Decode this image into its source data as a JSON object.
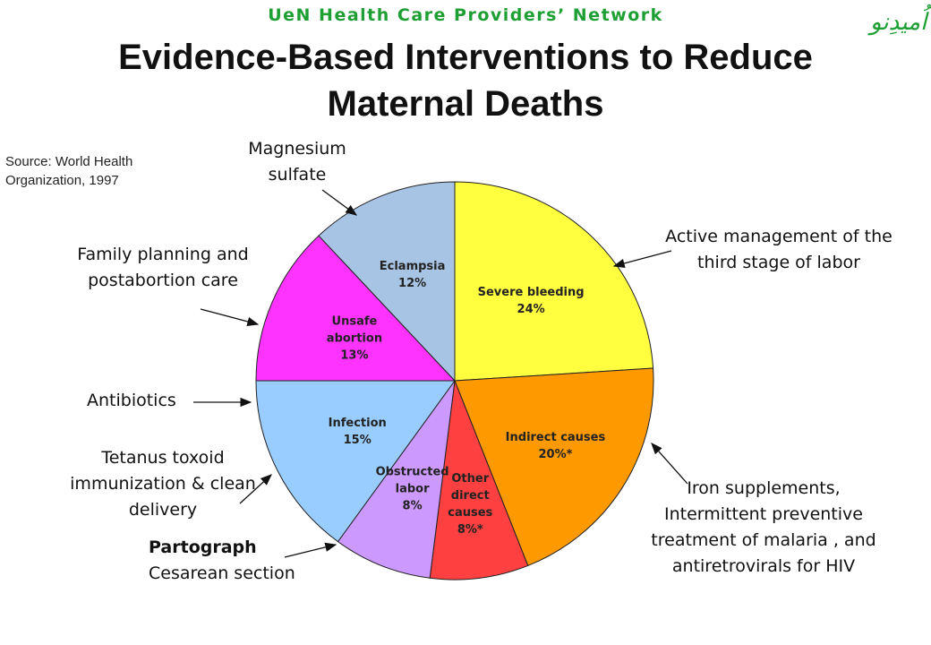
{
  "header": {
    "network": "UeN Health Care Providers’ Network",
    "title": "Evidence-Based Interventions to Reduce Maternal Deaths",
    "logo_text": "اُمیدِنو"
  },
  "source": "Source: World Health Organization, 1997",
  "chart_data": {
    "type": "pie",
    "title": "Evidence-Based Interventions to Reduce Maternal Deaths",
    "categories": [
      "Severe bleeding",
      "Indirect causes",
      "Other direct causes",
      "Obstructed labor",
      "Infection",
      "Unsafe abortion",
      "Eclampsia"
    ],
    "values": [
      24,
      20,
      8,
      8,
      15,
      13,
      12
    ],
    "value_labels": [
      "24%",
      "20%*",
      "8%*",
      "8%",
      "15%",
      "13%",
      "12%"
    ],
    "colors": [
      "#ffff40",
      "#ff9900",
      "#ff4040",
      "#cc99ff",
      "#99ccff",
      "#ff33ff",
      "#a8c4e4"
    ],
    "legend": "none"
  },
  "annotations": {
    "magnesium": "Magnesium sulfate",
    "active": "Active management of the third stage of labor",
    "family": "Family planning and postabortion care",
    "antibiotics": "Antibiotics",
    "tetanus": "Tetanus toxoid immunization & clean delivery",
    "partograph": "Partograph",
    "cesarean": "Cesarean section",
    "iron": "Iron supplements, Intermittent preventive treatment of malaria , and antiretrovirals for HIV"
  }
}
